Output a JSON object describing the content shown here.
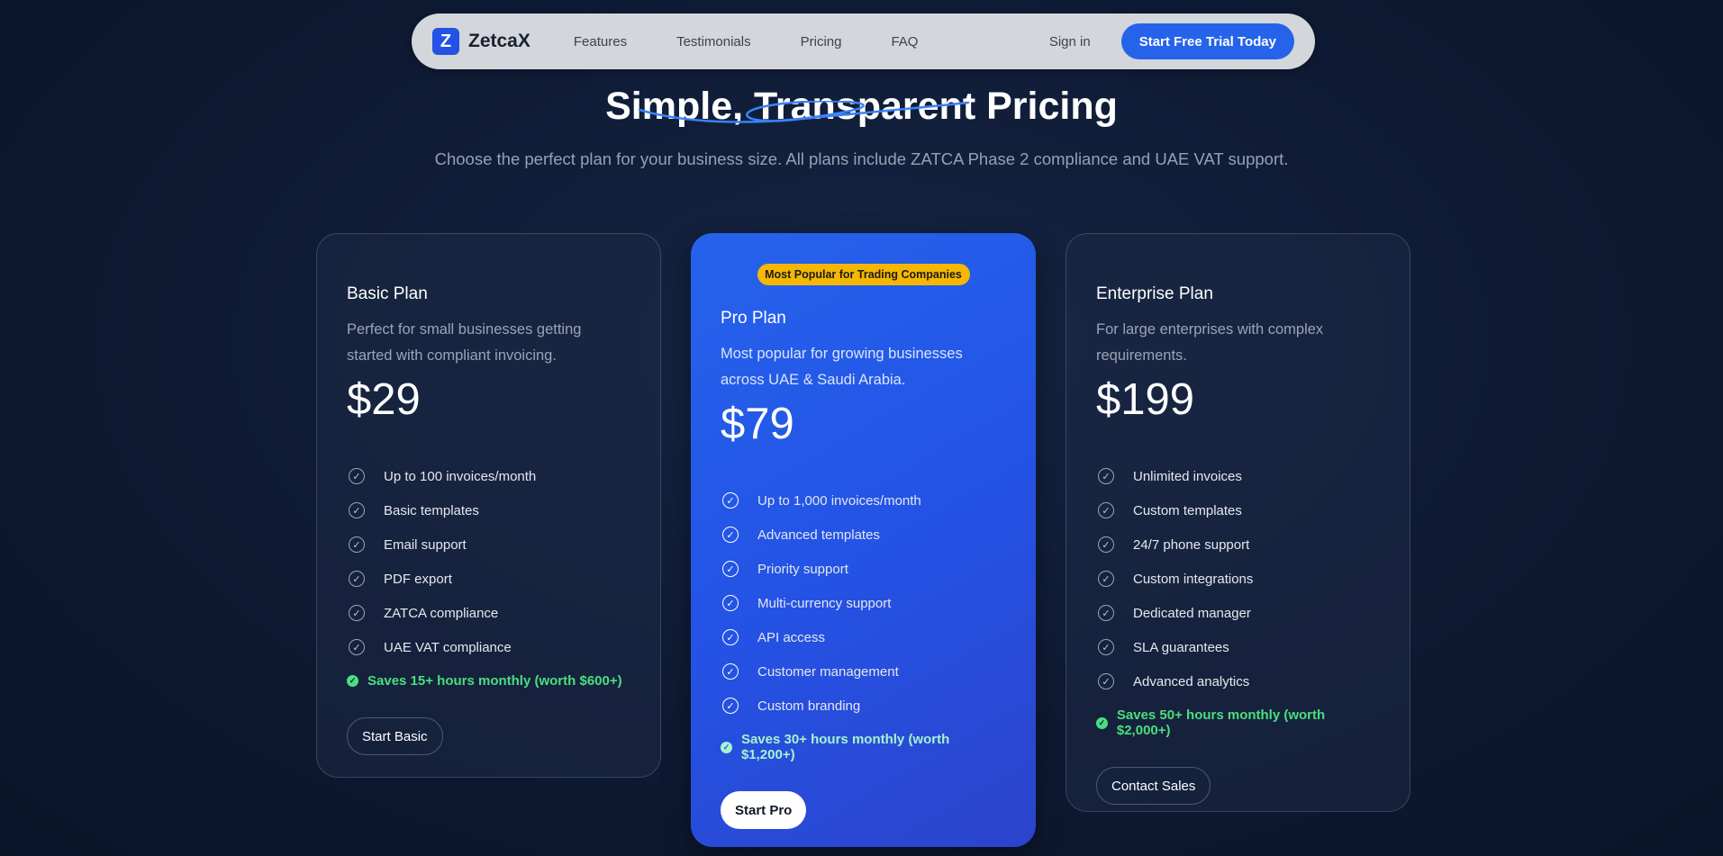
{
  "nav": {
    "logo_letter": "Z",
    "brand": "ZetcaX",
    "links": [
      "Features",
      "Testimonials",
      "Pricing",
      "FAQ"
    ],
    "signin": "Sign in",
    "cta": "Start Free Trial Today"
  },
  "hero": {
    "title": "Simple, Transparent Pricing",
    "subtitle": "Choose the perfect plan for your business size. All plans include ZATCA Phase 2 compliance and UAE VAT support."
  },
  "colors": {
    "accent": "#2563eb",
    "badge": "#f5b700",
    "savings": "#4ade80"
  },
  "plans": [
    {
      "name": "Basic Plan",
      "desc": "Perfect for small businesses getting started with compliant invoicing.",
      "price": "$29",
      "features": [
        "Up to 100 invoices/month",
        "Basic templates",
        "Email support",
        "PDF export",
        "ZATCA compliance",
        "UAE VAT compliance"
      ],
      "saves": "Saves 15+ hours monthly (worth $600+)",
      "button": "Start Basic"
    },
    {
      "badge": "Most Popular for Trading Companies",
      "name": "Pro Plan",
      "desc": "Most popular for growing businesses across UAE & Saudi Arabia.",
      "price": "$79",
      "features": [
        "Up to 1,000 invoices/month",
        "Advanced templates",
        "Priority support",
        "Multi-currency support",
        "API access",
        "Customer management",
        "Custom branding"
      ],
      "saves": "Saves 30+ hours monthly (worth $1,200+)",
      "button": "Start Pro"
    },
    {
      "name": "Enterprise Plan",
      "desc": "For large enterprises with complex requirements.",
      "price": "$199",
      "features": [
        "Unlimited invoices",
        "Custom templates",
        "24/7 phone support",
        "Custom integrations",
        "Dedicated manager",
        "SLA guarantees",
        "Advanced analytics"
      ],
      "saves": "Saves 50+ hours monthly (worth $2,000+)",
      "button": "Contact Sales"
    }
  ]
}
